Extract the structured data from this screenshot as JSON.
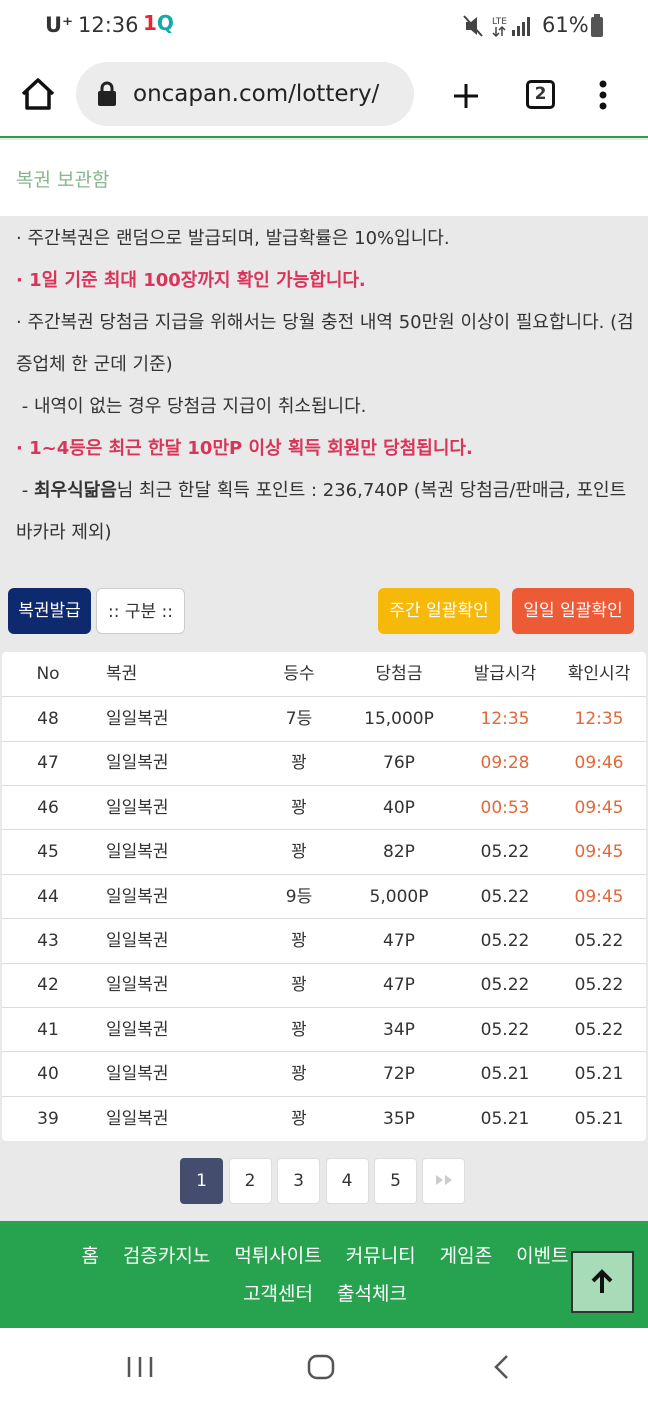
{
  "status_bar": {
    "carrier": "U⁺",
    "time": "12:36",
    "battery": "61%"
  },
  "browser": {
    "url": "oncapan.com/lottery/",
    "tab_count": "2"
  },
  "header": {
    "title": "복권 보관함"
  },
  "notices": [
    "· 주간복권은 랜덤으로 발급되며, 발급확률은 10%입니다.",
    "· 1일 기준 최대 100장까지 확인 가능합니다.",
    "· 주간복권 당첨금 지급을 위해서는 당월 충전 내역 50만원 이상이 필요합니다. (검증업체 한 군데 기준)",
    " - 내역이 없는 경우 당첨금 지급이 취소됩니다.",
    "· 1~4등은 최근 한달 10만P 이상 획득 회원만 당첨됩니다."
  ],
  "user_notice": {
    "prefix": " - ",
    "name": "최우식닮음",
    "text": "님 최근 한달 획득 포인트 : 236,740P (복권 당첨금/판매금, 포인트 바카라 제외)"
  },
  "buttons": {
    "issue": "복권발급",
    "filter": ":: 구분 ::",
    "weekly_check": "주간 일괄확인",
    "daily_check": "일일 일괄확인"
  },
  "table": {
    "headers": [
      "No",
      "복권",
      "등수",
      "당첨금",
      "발급시각",
      "확인시각"
    ],
    "rows": [
      [
        "48",
        "일일복권",
        "7등",
        "15,000P",
        "12:35",
        "12:35"
      ],
      [
        "47",
        "일일복권",
        "꽝",
        "76P",
        "09:28",
        "09:46"
      ],
      [
        "46",
        "일일복권",
        "꽝",
        "40P",
        "00:53",
        "09:45"
      ],
      [
        "45",
        "일일복권",
        "꽝",
        "82P",
        "05.22",
        "09:45"
      ],
      [
        "44",
        "일일복권",
        "9등",
        "5,000P",
        "05.22",
        "09:45"
      ],
      [
        "43",
        "일일복권",
        "꽝",
        "47P",
        "05.22",
        "05.22"
      ],
      [
        "42",
        "일일복권",
        "꽝",
        "47P",
        "05.22",
        "05.22"
      ],
      [
        "41",
        "일일복권",
        "꽝",
        "34P",
        "05.22",
        "05.22"
      ],
      [
        "40",
        "일일복권",
        "꽝",
        "72P",
        "05.21",
        "05.21"
      ],
      [
        "39",
        "일일복권",
        "꽝",
        "35P",
        "05.21",
        "05.21"
      ]
    ]
  },
  "pagination": {
    "pages": [
      "1",
      "2",
      "3",
      "4",
      "5"
    ],
    "current": "1"
  },
  "footer_nav": [
    "홈",
    "검증카지노",
    "먹튀사이트",
    "커뮤니티",
    "게임존",
    "이벤트",
    "고객센터",
    "출석체크"
  ]
}
